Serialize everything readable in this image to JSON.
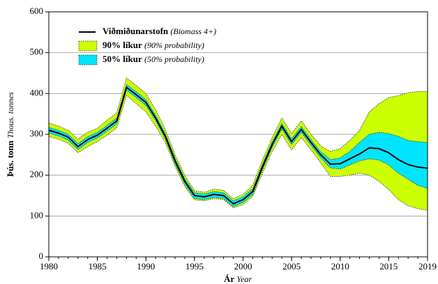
{
  "chart_data": {
    "type": "line",
    "x_label": {
      "text": "Ár",
      "translation": "Year"
    },
    "y_label": {
      "text": "Þús. tonn",
      "translation": "Thous. tonnes"
    },
    "x": [
      1980,
      1981,
      1982,
      1983,
      1984,
      1985,
      1986,
      1987,
      1988,
      1989,
      1990,
      1991,
      1992,
      1993,
      1994,
      1995,
      1996,
      1997,
      1998,
      1999,
      2000,
      2001,
      2002,
      2003,
      2004,
      2005,
      2006,
      2007,
      2008,
      2009,
      2010,
      2011,
      2012,
      2013,
      2014,
      2015,
      2016,
      2017,
      2018,
      2019
    ],
    "series": [
      {
        "name": "Viðmiðunarstofn",
        "note": "(Biomass 4+)",
        "color": "#000000",
        "values": [
          310,
          303,
          293,
          270,
          287,
          298,
          315,
          333,
          415,
          397,
          378,
          340,
          295,
          235,
          185,
          150,
          147,
          153,
          150,
          130,
          140,
          160,
          220,
          275,
          320,
          282,
          312,
          280,
          250,
          227,
          228,
          240,
          252,
          267,
          265,
          255,
          238,
          226,
          220,
          217
        ]
      }
    ],
    "bands": [
      {
        "name": "90% líkur",
        "note": "(90% probability)",
        "color": "#ccff00",
        "lower": [
          295,
          288,
          278,
          255,
          270,
          282,
          298,
          316,
          395,
          375,
          355,
          320,
          280,
          222,
          172,
          140,
          137,
          143,
          140,
          120,
          128,
          148,
          205,
          258,
          300,
          262,
          292,
          262,
          230,
          197,
          197,
          200,
          205,
          200,
          185,
          165,
          140,
          125,
          118,
          114
        ],
        "upper": [
          328,
          320,
          310,
          288,
          305,
          315,
          335,
          352,
          438,
          420,
          400,
          360,
          312,
          250,
          200,
          162,
          158,
          166,
          163,
          142,
          153,
          175,
          237,
          292,
          340,
          302,
          333,
          300,
          272,
          258,
          265,
          285,
          310,
          355,
          375,
          390,
          395,
          402,
          405,
          405
        ]
      },
      {
        "name": "50% líkur",
        "note": "(50% probability)",
        "color": "#00e5ff",
        "lower": [
          303,
          296,
          286,
          263,
          280,
          291,
          308,
          326,
          408,
          390,
          371,
          333,
          288,
          228,
          178,
          143,
          140,
          146,
          143,
          123,
          133,
          153,
          213,
          268,
          313,
          275,
          305,
          273,
          243,
          218,
          215,
          225,
          235,
          240,
          237,
          225,
          205,
          190,
          175,
          168
        ],
        "upper": [
          317,
          310,
          300,
          277,
          294,
          305,
          322,
          340,
          422,
          404,
          385,
          347,
          302,
          242,
          192,
          157,
          154,
          160,
          157,
          137,
          147,
          167,
          227,
          282,
          327,
          289,
          319,
          287,
          257,
          238,
          242,
          258,
          280,
          300,
          305,
          302,
          295,
          285,
          282,
          280
        ]
      }
    ],
    "xlim": [
      1980,
      2019
    ],
    "xticks": [
      1980,
      1985,
      1990,
      1995,
      2000,
      2005,
      2010,
      2015,
      2019
    ],
    "ylim": [
      0,
      600
    ],
    "yticks": [
      0,
      100,
      200,
      300,
      400,
      500,
      600
    ],
    "grid": true
  }
}
